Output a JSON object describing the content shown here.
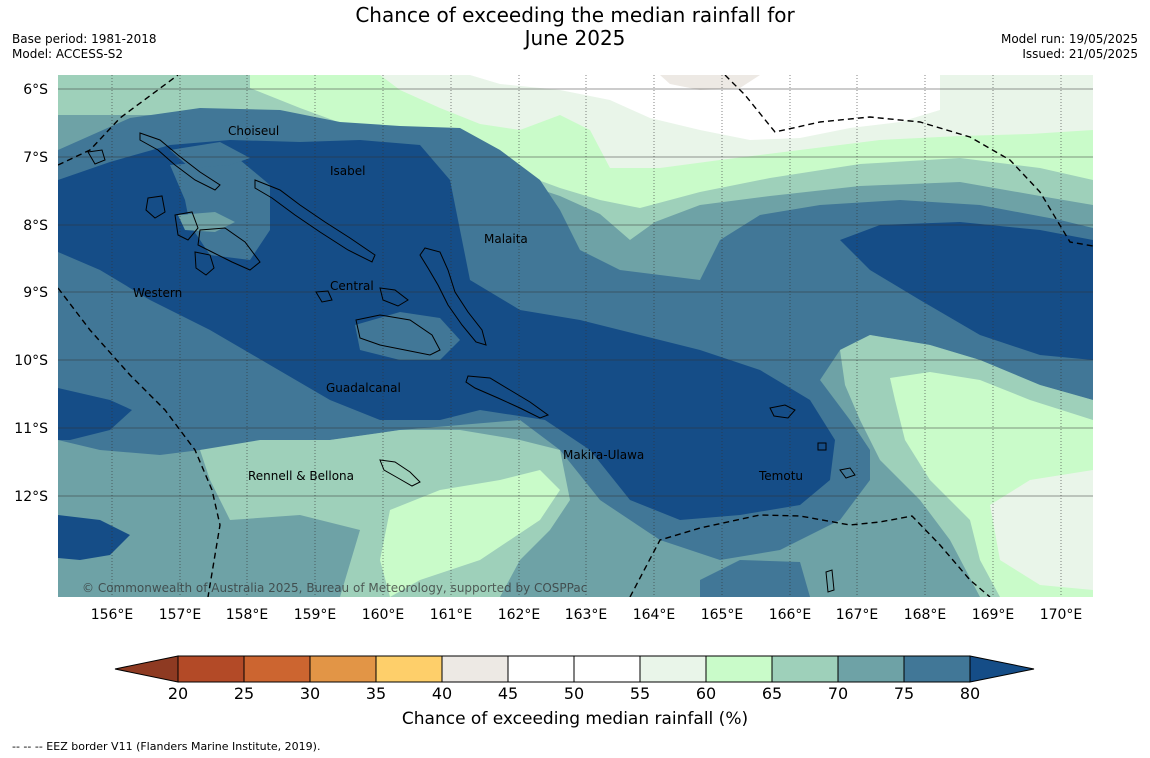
{
  "header": {
    "title_line1": "Chance of exceeding the median rainfall for",
    "title_line2": "June 2025",
    "base_period": "Base period: 1981-2018",
    "model": "Model: ACCESS-S2",
    "model_run": "Model run: 19/05/2025",
    "issued": "Issued: 21/05/2025"
  },
  "map": {
    "lat_ticks": [
      "6°S",
      "7°S",
      "8°S",
      "9°S",
      "10°S",
      "11°S",
      "12°S"
    ],
    "lon_ticks": [
      "156°E",
      "157°E",
      "158°E",
      "159°E",
      "160°E",
      "161°E",
      "162°E",
      "163°E",
      "164°E",
      "165°E",
      "166°E",
      "167°E",
      "168°E",
      "169°E",
      "170°E"
    ],
    "regions": [
      "Choiseul",
      "Isabel",
      "Malaita",
      "Central",
      "Western",
      "Guadalcanal",
      "Rennell & Bellona",
      "Makira-Ulawa",
      "Temotu"
    ],
    "copyright": "© Commonwealth of Australia 2025, Bureau of Meteorology, supported by COSPPac",
    "colors": {
      "below_20": "#8e3a22",
      "c20_25": "#b34a27",
      "c25_30": "#cc6530",
      "c30_35": "#e29546",
      "c35_40": "#fecf6a",
      "c40_45": "#ede9e4",
      "c45_55": "#ffffff",
      "c55_60": "#e9f5e9",
      "c60_65": "#c9fbc9",
      "c65_70": "#9ed0ba",
      "c70_75": "#6ea2a6",
      "c75_80": "#417797",
      "above_80": "#154d87"
    }
  },
  "colorbar": {
    "ticks": [
      "20",
      "25",
      "30",
      "35",
      "40",
      "45",
      "50",
      "55",
      "60",
      "65",
      "70",
      "75",
      "80"
    ],
    "label": "Chance of exceeding median rainfall (%)"
  },
  "footer": {
    "eez_note": "--  --  -- EEZ border V11 (Flanders Marine Institute, 2019)."
  }
}
